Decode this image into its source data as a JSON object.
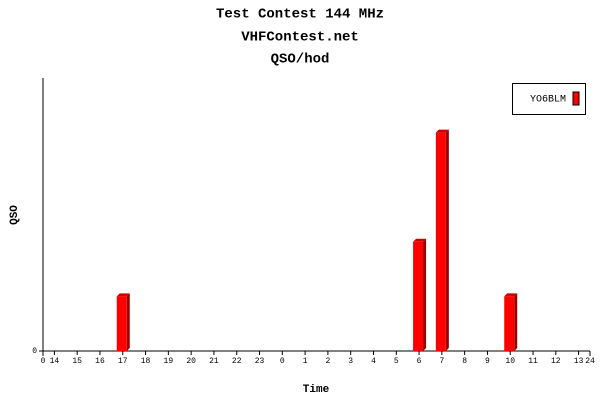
{
  "chart_data": {
    "type": "bar",
    "title_lines": [
      "Test Contest 144 MHz",
      "VHFContest.net",
      "QSO/hod"
    ],
    "y_label": "QSO",
    "x_label": "Time",
    "categories": [
      "14",
      "15",
      "16",
      "17",
      "18",
      "19",
      "20",
      "21",
      "22",
      "23",
      "0",
      "1",
      "2",
      "3",
      "4",
      "5",
      "6",
      "7",
      "8",
      "9",
      "10",
      "11",
      "12",
      "13"
    ],
    "series": [
      {
        "name": "YO6BLM",
        "color": "#ff0000",
        "values": [
          0,
          0,
          0,
          1,
          0,
          0,
          0,
          0,
          0,
          0,
          0,
          0,
          0,
          0,
          0,
          0,
          2,
          4,
          0,
          0,
          1,
          0,
          0,
          0
        ]
      }
    ],
    "xlim": [
      0,
      24
    ],
    "xticks": [
      0,
      24
    ],
    "ylim": [
      0,
      5
    ],
    "yticks": [
      0
    ],
    "legend": "top-right"
  }
}
